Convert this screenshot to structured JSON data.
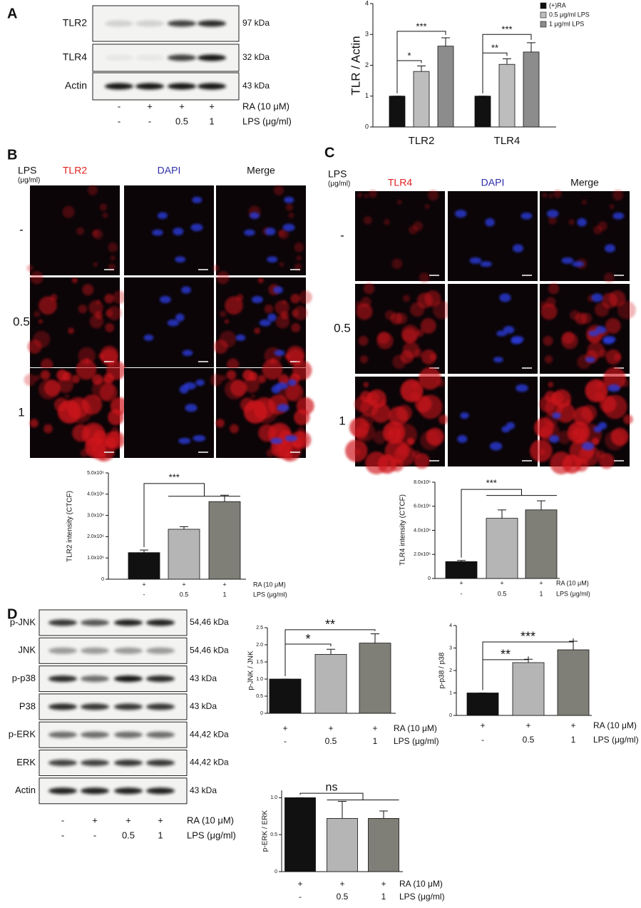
{
  "figure": {
    "panel_labels": [
      "A",
      "B",
      "C",
      "D"
    ],
    "blots": [
      {
        "rows": [
          {
            "name": "TLR2",
            "size": "97 kDa"
          },
          {
            "name": "TLR4",
            "size": "32 kDa"
          },
          {
            "name": "Actin",
            "size": "43 kDa"
          }
        ],
        "conditions": [
          {
            "label": "RA (10 μM)",
            "lanes": [
              "-",
              "+",
              "+",
              "+"
            ]
          },
          {
            "label": "LPS (μg/ml)",
            "lanes": [
              "-",
              "-",
              "0.5",
              "1"
            ]
          }
        ]
      },
      {
        "rows": [
          {
            "name": "p-JNK",
            "size": "54,46 kDa"
          },
          {
            "name": "JNK",
            "size": "54,46 kDa"
          },
          {
            "name": "p-p38",
            "size": "43 kDa"
          },
          {
            "name": "P38",
            "size": "43 kDa"
          },
          {
            "name": "p-ERK",
            "size": "44,42 kDa"
          },
          {
            "name": "ERK",
            "size": "44,42 kDa"
          },
          {
            "name": "Actin",
            "size": "43 kDa"
          }
        ],
        "conditions": [
          {
            "label": "RA (10 μM)",
            "lanes": [
              "-",
              "+",
              "+",
              "+"
            ]
          },
          {
            "label": "LPS (μg/ml)",
            "lanes": [
              "-",
              "-",
              "0.5",
              "1"
            ]
          }
        ]
      }
    ],
    "imaging": [
      {
        "dose_label": "LPS",
        "dose_unit": "(μg/ml)",
        "channels": [
          "TLR2",
          "DAPI",
          "Merge"
        ],
        "doses": [
          "-",
          "0.5",
          "1"
        ]
      },
      {
        "dose_label": "LPS",
        "dose_unit": "(μg/ml)",
        "channels": [
          "TLR4",
          "DAPI",
          "Merge"
        ],
        "doses": [
          "-",
          "0.5",
          "1"
        ]
      }
    ]
  },
  "chart_data": [
    {
      "type": "bar",
      "ylabel": "TLR / Actin",
      "categories": [
        "TLR2",
        "TLR4"
      ],
      "series": [
        {
          "name": "(+)RA",
          "color": "#111111",
          "values": [
            1,
            1
          ],
          "errors": [
            0,
            0
          ]
        },
        {
          "name": "0.5 μg/ml LPS",
          "color": "#bdbdbd",
          "values": [
            1.8,
            2.03
          ],
          "errors": [
            0.18,
            0.18
          ]
        },
        {
          "name": "1 μg/ml LPS",
          "color": "#8c8c8c",
          "values": [
            2.62,
            2.43
          ],
          "errors": [
            0.27,
            0.3
          ]
        }
      ],
      "ylim": [
        0,
        4
      ],
      "yticks": [
        0,
        1,
        2,
        3,
        4
      ],
      "annotations": [
        "*",
        "***",
        "**",
        "***"
      ]
    },
    {
      "type": "bar",
      "ylabel": "TLR2 intensity (CTCF)",
      "conditions": [
        {
          "label": "RA (10 μM)",
          "values": [
            "+",
            "+",
            "+"
          ]
        },
        {
          "label": "LPS (μg/ml)",
          "values": [
            "-",
            "0.5",
            "1"
          ]
        }
      ],
      "values": [
        1250000,
        2350000,
        3650000
      ],
      "errors": [
        120000,
        120000,
        300000
      ],
      "colors": [
        "#111111",
        "#b5b5b5",
        "#7f7f78"
      ],
      "ylim": [
        0,
        5000000
      ],
      "yticks": [
        0,
        {
          "value": 1000000,
          "label": "1.0x10⁶"
        },
        {
          "value": 2000000,
          "label": "2.0x10⁶"
        },
        {
          "value": 3000000,
          "label": "3.0x10⁶"
        },
        {
          "value": 4000000,
          "label": "4.0x10⁶"
        },
        {
          "value": 5000000,
          "label": "5.0x10⁶"
        }
      ],
      "annotations": [
        "***"
      ]
    },
    {
      "type": "bar",
      "ylabel": "TLR4 intensity (CTCF)",
      "conditions": [
        {
          "label": "RA (10 μM)",
          "values": [
            "+",
            "+",
            "+"
          ]
        },
        {
          "label": "LPS (μg/ml)",
          "values": [
            "-",
            "0.5",
            "1"
          ]
        }
      ],
      "values": [
        1400000,
        5000000,
        5700000
      ],
      "errors": [
        100000,
        700000,
        750000
      ],
      "colors": [
        "#111111",
        "#b5b5b5",
        "#7f7f78"
      ],
      "ylim": [
        0,
        8000000
      ],
      "yticks": [
        0,
        {
          "value": 2000000,
          "label": "2.0x10⁶"
        },
        {
          "value": 4000000,
          "label": "4.0x10⁶"
        },
        {
          "value": 6000000,
          "label": "6.0x10⁶"
        },
        {
          "value": 8000000,
          "label": "8.0x10⁶"
        }
      ],
      "annotations": [
        "***"
      ]
    },
    {
      "type": "bar",
      "ylabel": "p-JNK / JNK",
      "conditions": [
        {
          "label": "RA (10 μM)",
          "values": [
            "+",
            "+",
            "+"
          ]
        },
        {
          "label": "LPS (μg/ml)",
          "values": [
            "-",
            "0.5",
            "1"
          ]
        }
      ],
      "values": [
        1.0,
        1.72,
        2.05
      ],
      "errors": [
        0,
        0.15,
        0.27
      ],
      "colors": [
        "#111111",
        "#b5b5b5",
        "#7f7f78"
      ],
      "ylim": [
        0,
        2.5
      ],
      "yticks": [
        0,
        0.5,
        {
          "value": 1,
          "label": "1.0"
        },
        1.5,
        {
          "value": 2,
          "label": "2.0"
        },
        2.5
      ],
      "annotations": [
        "*",
        "**"
      ]
    },
    {
      "type": "bar",
      "ylabel": "p-p38 / p38",
      "conditions": [
        {
          "label": "RA (10 μM)",
          "values": [
            "+",
            "+",
            "+"
          ]
        },
        {
          "label": "LPS (μg/ml)",
          "values": [
            "-",
            "0.5",
            "1"
          ]
        }
      ],
      "values": [
        1.0,
        2.35,
        2.92
      ],
      "errors": [
        0,
        0.15,
        0.38
      ],
      "colors": [
        "#111111",
        "#b5b5b5",
        "#7f7f78"
      ],
      "ylim": [
        0,
        4
      ],
      "yticks": [
        0,
        1,
        2,
        3,
        4
      ],
      "annotations": [
        "**",
        "***"
      ]
    },
    {
      "type": "bar",
      "ylabel": "p-ERK / ERK",
      "conditions": [
        {
          "label": "RA (10 μM)",
          "values": [
            "+",
            "+",
            "+"
          ]
        },
        {
          "label": "LPS (μg/ml)",
          "values": [
            "-",
            "0.5",
            "1"
          ]
        }
      ],
      "values": [
        1.0,
        0.72,
        0.72
      ],
      "errors": [
        0,
        0.23,
        0.1
      ],
      "colors": [
        "#111111",
        "#b5b5b5",
        "#7f7f78"
      ],
      "ylim": [
        0,
        1.1
      ],
      "yticks": [
        0,
        0.5,
        {
          "value": 1,
          "label": "1.0"
        }
      ],
      "annotations": [
        "ns"
      ]
    }
  ]
}
